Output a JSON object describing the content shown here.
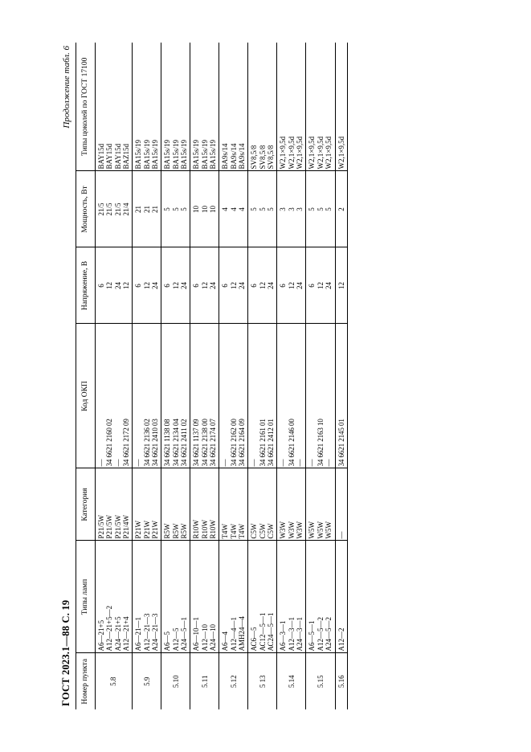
{
  "page_label": "ГОСТ 2023.1—88 С. 19",
  "table_caption": "Продолжение табл. 6",
  "columns": [
    "Номер пункта",
    "Типы ламп",
    "Категория",
    "Код ОКП",
    "Напряжение, В",
    "Мощность, Вт",
    "Типы цоколей по ГОСТ 17100"
  ],
  "rows": [
    {
      "num": "5.8",
      "type": [
        "А6—21+5",
        "А12—21+5—2",
        "А24—21+5",
        "А12—21+4"
      ],
      "cat": [
        "P21/5W",
        "P21/5W",
        "P21/5W",
        "P21/4W"
      ],
      "okp": [
        "—",
        "34  6621 2160 02",
        "—",
        "34  6621 2172 09"
      ],
      "volt": [
        "6",
        "12",
        "24",
        "12"
      ],
      "pow": [
        "21/5",
        "21/5",
        "21/5",
        "21/4"
      ],
      "cap": [
        "BAY15d",
        "BAY15d",
        "BAY15d",
        "BAZ15d"
      ]
    },
    {
      "num": "5.9",
      "type": [
        "А6—21—1",
        "А12—21—3",
        "А24—21—3"
      ],
      "cat": [
        "P21W",
        "P21W",
        "P21W"
      ],
      "okp": [
        "—",
        "34  6621 2136 02",
        "34  6621 2410 03"
      ],
      "volt": [
        "6",
        "12",
        "24"
      ],
      "pow": [
        "21",
        "21",
        "21"
      ],
      "cap": [
        "BA15s/19",
        "BA15s/19",
        "BA15s/19"
      ]
    },
    {
      "num": "5.10",
      "type": [
        "А6—5",
        "А12—5",
        "А24—5—1"
      ],
      "cat": [
        "R5W",
        "R5W",
        "R5W"
      ],
      "okp": [
        "34  6621 1138 08",
        "34  6621 2134 04",
        "34  6621 2411 02"
      ],
      "volt": [
        "6",
        "12",
        "24"
      ],
      "pow": [
        "5",
        "5",
        "5"
      ],
      "cap": [
        "BA15s/19",
        "BA15s/19",
        "BA15s/19"
      ]
    },
    {
      "num": "5.11",
      "type": [
        "А6—10—1",
        "А12—10",
        "А24—10"
      ],
      "cat": [
        "R10W",
        "R10W",
        "R10W"
      ],
      "okp": [
        "34  6621 1137 09",
        "34  6621 2138 00",
        "34  6621 2174 07"
      ],
      "volt": [
        "6",
        "12",
        "24"
      ],
      "pow": [
        "10",
        "10",
        "10"
      ],
      "cap": [
        "BA15s/19",
        "BA15s/19",
        "BA15s/19"
      ]
    },
    {
      "num": "5.12",
      "type": [
        "А6—4",
        "А12—4—1",
        "АМН24—4"
      ],
      "cat": [
        "T4W",
        "T4W",
        "T4W"
      ],
      "okp": [
        "—",
        "34  6621 2162 00",
        "34  6621 2164 09"
      ],
      "volt": [
        "6",
        "12",
        "24"
      ],
      "pow": [
        "4",
        "4",
        "4"
      ],
      "cap": [
        "BA9s/14",
        "BA9s/14",
        "BA9s/14"
      ]
    },
    {
      "num": "5 13",
      "type": [
        "АС6—5",
        "АС12—5—1",
        "АС24—5—1"
      ],
      "cat": [
        "C5W",
        "C5W",
        "C5W"
      ],
      "okp": [
        "—",
        "34  6621 2161 01",
        "34  6621 2412 01"
      ],
      "volt": [
        "6",
        "12",
        "24"
      ],
      "pow": [
        "5",
        "5",
        "5"
      ],
      "cap": [
        "SV8,5/8",
        "SV8,5/8",
        "SV8,5/8"
      ]
    },
    {
      "num": "5.14",
      "type": [
        "А6—3—1",
        "А12—3—1",
        "А24—3—1"
      ],
      "cat": [
        "W3W",
        "W3W",
        "W3W"
      ],
      "okp": [
        "—",
        "34  6621 2146 00",
        "—"
      ],
      "volt": [
        "6",
        "12",
        "24"
      ],
      "pow": [
        "3",
        "3",
        "3"
      ],
      "cap": [
        "W2,1×9,5d",
        "W2,1×9,5d",
        "W2,1×9,5d"
      ]
    },
    {
      "num": "5.15",
      "type": [
        "А6—5—1",
        "А12—5—2",
        "А24—5—2"
      ],
      "cat": [
        "W5W",
        "W5W",
        "W5W"
      ],
      "okp": [
        "—",
        "34  6621 2163 10",
        "—"
      ],
      "volt": [
        "6",
        "12",
        "24"
      ],
      "pow": [
        "5",
        "5",
        "5"
      ],
      "cap": [
        "W2,1×9,5d",
        "W2,1×9,5d",
        "W2,1×9,5d"
      ]
    },
    {
      "num": "5.16",
      "type": [
        "А12—2"
      ],
      "cat": [
        "—"
      ],
      "okp": [
        "34  6621 2145 01"
      ],
      "volt": [
        "12"
      ],
      "pow": [
        "2"
      ],
      "cap": [
        "W2,1×9,5d"
      ]
    }
  ]
}
